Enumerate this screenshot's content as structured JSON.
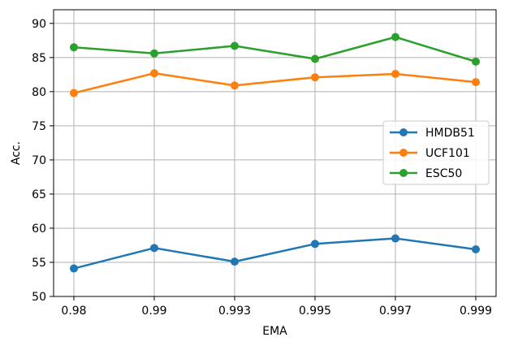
{
  "chart_data": {
    "type": "line",
    "categories": [
      "0.98",
      "0.99",
      "0.993",
      "0.995",
      "0.997",
      "0.999"
    ],
    "series": [
      {
        "name": "HMDB51",
        "values": [
          54.1,
          57.1,
          55.1,
          57.7,
          58.5,
          56.9
        ],
        "color": "#1f77b4"
      },
      {
        "name": "UCF101",
        "values": [
          79.8,
          82.7,
          80.9,
          82.1,
          82.6,
          81.4
        ],
        "color": "#ff7f0e"
      },
      {
        "name": "ESC50",
        "values": [
          86.5,
          85.6,
          86.7,
          84.8,
          88.0,
          84.4
        ],
        "color": "#2ca02c"
      }
    ],
    "xlabel": "EMA",
    "ylabel": "Acc.",
    "ylim": [
      50,
      92
    ],
    "yticks": [
      50,
      55,
      60,
      65,
      70,
      75,
      80,
      85,
      90
    ],
    "grid": true,
    "legend_position": "center-right"
  }
}
